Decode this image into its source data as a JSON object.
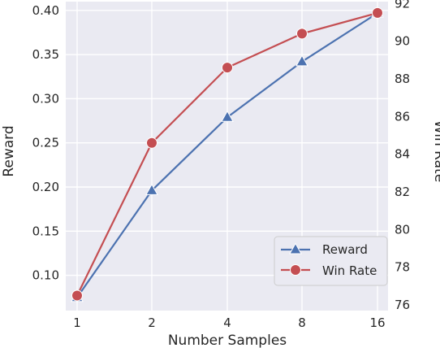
{
  "chart_data": {
    "type": "line",
    "title": "",
    "xlabel": "Number Samples",
    "ylabel_left": "Reward",
    "ylabel_right": "Win Rate",
    "categories": [
      "1",
      "2",
      "4",
      "8",
      "16"
    ],
    "ylim_left": [
      0.06,
      0.41
    ],
    "yticks_left": [
      "0.10",
      "0.15",
      "0.20",
      "0.25",
      "0.30",
      "0.35",
      "0.40"
    ],
    "ylim_right": [
      75.7,
      92.1
    ],
    "yticks_right": [
      "76",
      "78",
      "80",
      "82",
      "84",
      "86",
      "88",
      "90",
      "92"
    ],
    "grid": true,
    "legend_position": "lower-right",
    "series": [
      {
        "name": "Reward",
        "axis": "left",
        "marker": "triangle",
        "color": "#4C72B0",
        "values": [
          0.075,
          0.196,
          0.279,
          0.342,
          0.397
        ]
      },
      {
        "name": "Win Rate",
        "axis": "right",
        "marker": "circle",
        "color": "#C44E52",
        "values": [
          76.5,
          84.6,
          88.6,
          90.4,
          91.5
        ]
      }
    ],
    "background_color": "#EAEAF2",
    "grid_color": "#FFFFFF"
  }
}
